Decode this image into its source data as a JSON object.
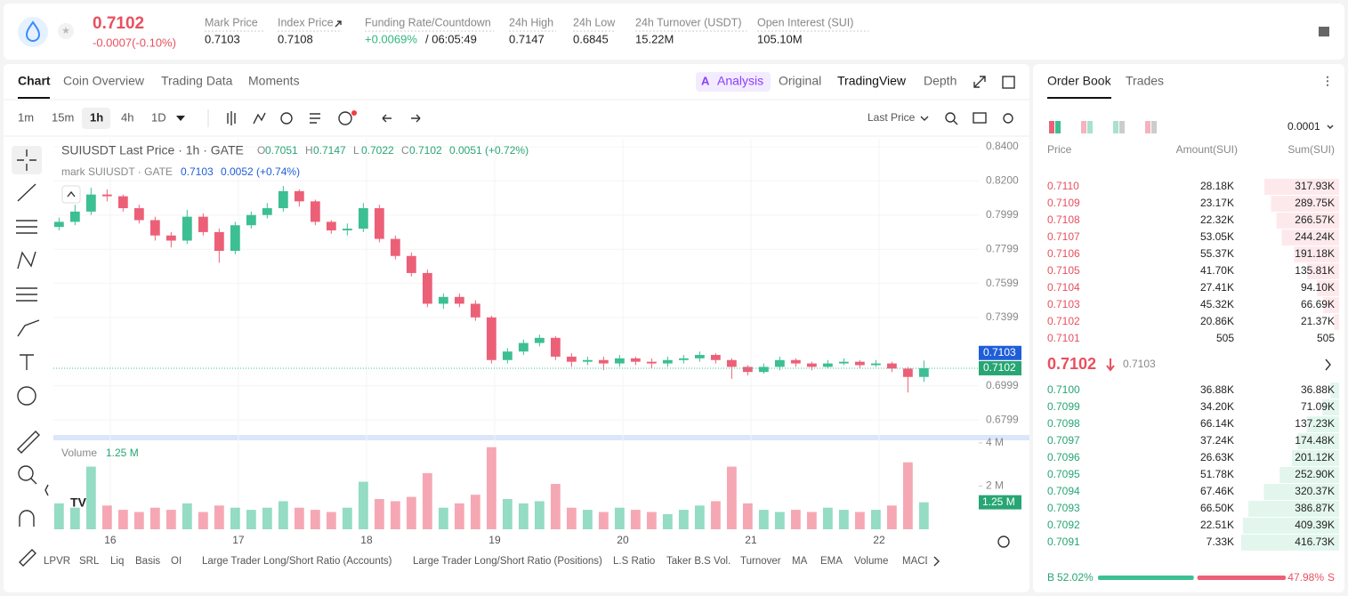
{
  "header": {
    "price": "0.7102",
    "change": "-0.0007(-0.10%)",
    "stats": [
      {
        "label": "Mark Price",
        "value": "0.7103"
      },
      {
        "label": "Index Price",
        "value": "0.7108"
      },
      {
        "label": "Funding Rate/Countdown",
        "value": "+0.0069%",
        "countdown": "/ 06:05:49"
      },
      {
        "label": "24h High",
        "value": "0.7147"
      },
      {
        "label": "24h Low",
        "value": "0.6845"
      },
      {
        "label": "24h Turnover (USDT)",
        "value": "15.22M"
      },
      {
        "label": "Open Interest (SUI)",
        "value": "105.10M"
      }
    ]
  },
  "tabs": [
    "Chart",
    "Coin Overview",
    "Trading Data",
    "Moments"
  ],
  "views": [
    "Analysis",
    "Original",
    "TradingView",
    "Depth"
  ],
  "intervals": [
    "1m",
    "15m",
    "1h",
    "4h",
    "1D"
  ],
  "price_type": "Last Price",
  "chart_data": {
    "type": "candlestick",
    "title": "SUIUSDT Last Price · 1h · GATE",
    "ohlc_labels": [
      "O",
      "H",
      "L",
      "C"
    ],
    "change": "0.0051 (+0.72%)",
    "mark_title": "mark SUIUSDT · GATE",
    "mark_price": 0.7103,
    "mark_change": "0.0052 (+0.74%)",
    "last_price": 0.7102,
    "up_color": "#3cbf93",
    "down_color": "#ec6077",
    "grid": true,
    "x": [
      15.6,
      15.725,
      15.85,
      15.975,
      16.1,
      16.225,
      16.35,
      16.475,
      16.6,
      16.725,
      16.85,
      16.975,
      17.1,
      17.225,
      17.35,
      17.475,
      17.6,
      17.725,
      17.85,
      17.975,
      18.1,
      18.225,
      18.35,
      18.475,
      18.6,
      18.725,
      18.85,
      18.975,
      19.1,
      19.225,
      19.35,
      19.475,
      19.6,
      19.725,
      19.85,
      19.975,
      20.1,
      20.225,
      20.35,
      20.475,
      20.6,
      20.725,
      20.85,
      20.975,
      21.1,
      21.225,
      21.35,
      21.475,
      21.6,
      21.725,
      21.85,
      21.975,
      22.1,
      22.225,
      22.35
    ],
    "open": [
      0.793,
      0.796,
      0.802,
      0.812,
      0.811,
      0.804,
      0.797,
      0.788,
      0.785,
      0.799,
      0.79,
      0.779,
      0.794,
      0.8,
      0.804,
      0.814,
      0.808,
      0.796,
      0.791,
      0.792,
      0.804,
      0.786,
      0.776,
      0.766,
      0.748,
      0.752,
      0.748,
      0.74,
      0.715,
      0.72,
      0.725,
      0.728,
      0.717,
      0.714,
      0.715,
      0.713,
      0.716,
      0.714,
      0.713,
      0.715,
      0.716,
      0.718,
      0.715,
      0.711,
      0.708,
      0.711,
      0.715,
      0.713,
      0.711,
      0.713,
      0.714,
      0.712,
      0.713,
      0.71,
      0.7051
    ],
    "high": [
      0.7985,
      0.806,
      0.816,
      0.815,
      0.812,
      0.806,
      0.799,
      0.79,
      0.803,
      0.801,
      0.792,
      0.796,
      0.802,
      0.807,
      0.817,
      0.815,
      0.809,
      0.797,
      0.795,
      0.807,
      0.806,
      0.788,
      0.778,
      0.768,
      0.754,
      0.754,
      0.75,
      0.741,
      0.722,
      0.727,
      0.73,
      0.729,
      0.719,
      0.717,
      0.717,
      0.718,
      0.717,
      0.716,
      0.717,
      0.718,
      0.72,
      0.719,
      0.716,
      0.712,
      0.713,
      0.717,
      0.716,
      0.714,
      0.715,
      0.716,
      0.715,
      0.715,
      0.714,
      0.711,
      0.7147
    ],
    "low": [
      0.791,
      0.794,
      0.8,
      0.808,
      0.802,
      0.795,
      0.785,
      0.781,
      0.783,
      0.788,
      0.772,
      0.777,
      0.792,
      0.798,
      0.802,
      0.805,
      0.794,
      0.789,
      0.788,
      0.79,
      0.784,
      0.774,
      0.764,
      0.746,
      0.745,
      0.746,
      0.738,
      0.713,
      0.713,
      0.718,
      0.723,
      0.715,
      0.711,
      0.712,
      0.709,
      0.711,
      0.712,
      0.71,
      0.711,
      0.713,
      0.714,
      0.713,
      0.704,
      0.706,
      0.707,
      0.709,
      0.711,
      0.709,
      0.71,
      0.712,
      0.71,
      0.711,
      0.708,
      0.696,
      0.7022
    ],
    "close": [
      0.796,
      0.802,
      0.812,
      0.811,
      0.804,
      0.797,
      0.788,
      0.785,
      0.799,
      0.79,
      0.779,
      0.794,
      0.8,
      0.804,
      0.814,
      0.808,
      0.796,
      0.791,
      0.792,
      0.804,
      0.786,
      0.776,
      0.766,
      0.748,
      0.752,
      0.748,
      0.74,
      0.715,
      0.72,
      0.725,
      0.728,
      0.717,
      0.714,
      0.715,
      0.713,
      0.716,
      0.714,
      0.713,
      0.715,
      0.716,
      0.718,
      0.715,
      0.711,
      0.708,
      0.711,
      0.715,
      0.713,
      0.711,
      0.713,
      0.714,
      0.712,
      0.713,
      0.71,
      0.7051,
      0.7102
    ],
    "volume": [
      1200000,
      1000000,
      2900000,
      1100000,
      900000,
      800000,
      1000000,
      900000,
      1200000,
      800000,
      1100000,
      1000000,
      900000,
      1000000,
      1300000,
      1000000,
      900000,
      800000,
      1000000,
      2200000,
      1400000,
      1300000,
      1500000,
      2600000,
      1000000,
      1200000,
      1600000,
      3800000,
      1400000,
      1200000,
      1300000,
      2100000,
      1000000,
      900000,
      800000,
      1000000,
      900000,
      800000,
      700000,
      900000,
      1100000,
      1300000,
      2900000,
      1200000,
      900000,
      800000,
      900000,
      800000,
      1000000,
      900000,
      800000,
      900000,
      1100000,
      3100000,
      1250000
    ],
    "volume_title": "Volume",
    "current_volume": {
      "value": 1250000,
      "label": "1.25 M"
    },
    "xlim": [
      15.556,
      22.778
    ],
    "xticks": [
      16,
      17,
      18,
      19,
      20,
      21,
      22
    ],
    "ylim": [
      0.6716,
      0.8452
    ],
    "yticks": [
      {
        "value": 0.84,
        "label": "0.8400"
      },
      {
        "value": 0.82,
        "label": "0.8200"
      },
      0.7999,
      0.7799,
      0.7599,
      0.7399,
      0.6999,
      0.6799
    ],
    "vlim": [
      0,
      4200000
    ],
    "vticks": [
      {
        "value": 4000000,
        "label": "4 M"
      },
      {
        "value": 2000000,
        "label": "2 M"
      }
    ]
  },
  "indicators": [
    "LPVR",
    "SRL",
    "Liq",
    "Basis",
    "OI",
    "Large Trader Long/Short Ratio (Accounts)",
    "Large Trader Long/Short Ratio (Positions)",
    "L.S Ratio",
    "Taker B.S Vol.",
    "Turnover",
    "MA",
    "EMA",
    "Volume",
    "MACD"
  ],
  "order_book": {
    "tabs": [
      "Order Book",
      "Trades"
    ],
    "precision": "0.0001",
    "columns": [
      "Price",
      "Amount(SUI)",
      "Sum(SUI)"
    ],
    "asks": [
      {
        "price": "0.7110",
        "amount": "28.18K",
        "sum": {
          "value": 317930,
          "label": "317.93K"
        }
      },
      {
        "price": "0.7109",
        "amount": "23.17K",
        "sum": {
          "value": 289750,
          "label": "289.75K"
        }
      },
      {
        "price": "0.7108",
        "amount": "22.32K",
        "sum": {
          "value": 266570,
          "label": "266.57K"
        }
      },
      {
        "price": "0.7107",
        "amount": "53.05K",
        "sum": {
          "value": 244240,
          "label": "244.24K"
        }
      },
      {
        "price": "0.7106",
        "amount": "55.37K",
        "sum": {
          "value": 191180,
          "label": "191.18K"
        }
      },
      {
        "price": "0.7105",
        "amount": "41.70K",
        "sum": {
          "value": 135810,
          "label": "135.81K"
        }
      },
      {
        "price": "0.7104",
        "amount": "27.41K",
        "sum": {
          "value": 94100,
          "label": "94.10K"
        }
      },
      {
        "price": "0.7103",
        "amount": "45.32K",
        "sum": {
          "value": 66690,
          "label": "66.69K"
        }
      },
      {
        "price": "0.7102",
        "amount": "20.86K",
        "sum": {
          "value": 21370,
          "label": "21.37K"
        }
      },
      {
        "price": "0.7101",
        "amount": "505",
        "sum": 505
      }
    ],
    "last": "0.7102",
    "mark": "0.7103",
    "bids": [
      {
        "price": "0.7100",
        "amount": "36.88K",
        "sum": {
          "value": 36880,
          "label": "36.88K"
        }
      },
      {
        "price": "0.7099",
        "amount": "34.20K",
        "sum": {
          "value": 71090,
          "label": "71.09K"
        }
      },
      {
        "price": "0.7098",
        "amount": "66.14K",
        "sum": {
          "value": 137230,
          "label": "137.23K"
        }
      },
      {
        "price": "0.7097",
        "amount": "37.24K",
        "sum": {
          "value": 174480,
          "label": "174.48K"
        }
      },
      {
        "price": "0.7096",
        "amount": "26.63K",
        "sum": {
          "value": 201120,
          "label": "201.12K"
        }
      },
      {
        "price": "0.7095",
        "amount": "51.78K",
        "sum": {
          "value": 252900,
          "label": "252.90K"
        }
      },
      {
        "price": "0.7094",
        "amount": "67.46K",
        "sum": {
          "value": 320370,
          "label": "320.37K"
        }
      },
      {
        "price": "0.7093",
        "amount": "66.50K",
        "sum": {
          "value": 386870,
          "label": "386.87K"
        }
      },
      {
        "price": "0.7092",
        "amount": "22.51K",
        "sum": {
          "value": 409390,
          "label": "409.39K"
        }
      },
      {
        "price": "0.7091",
        "amount": "7.33K",
        "sum": {
          "value": 416730,
          "label": "416.73K"
        }
      }
    ],
    "buy_label": "B",
    "buy": {
      "value": 52.02,
      "label": "52.02%"
    },
    "sell": {
      "value": 47.98,
      "label": "47.98%"
    },
    "sell_label": "S"
  }
}
